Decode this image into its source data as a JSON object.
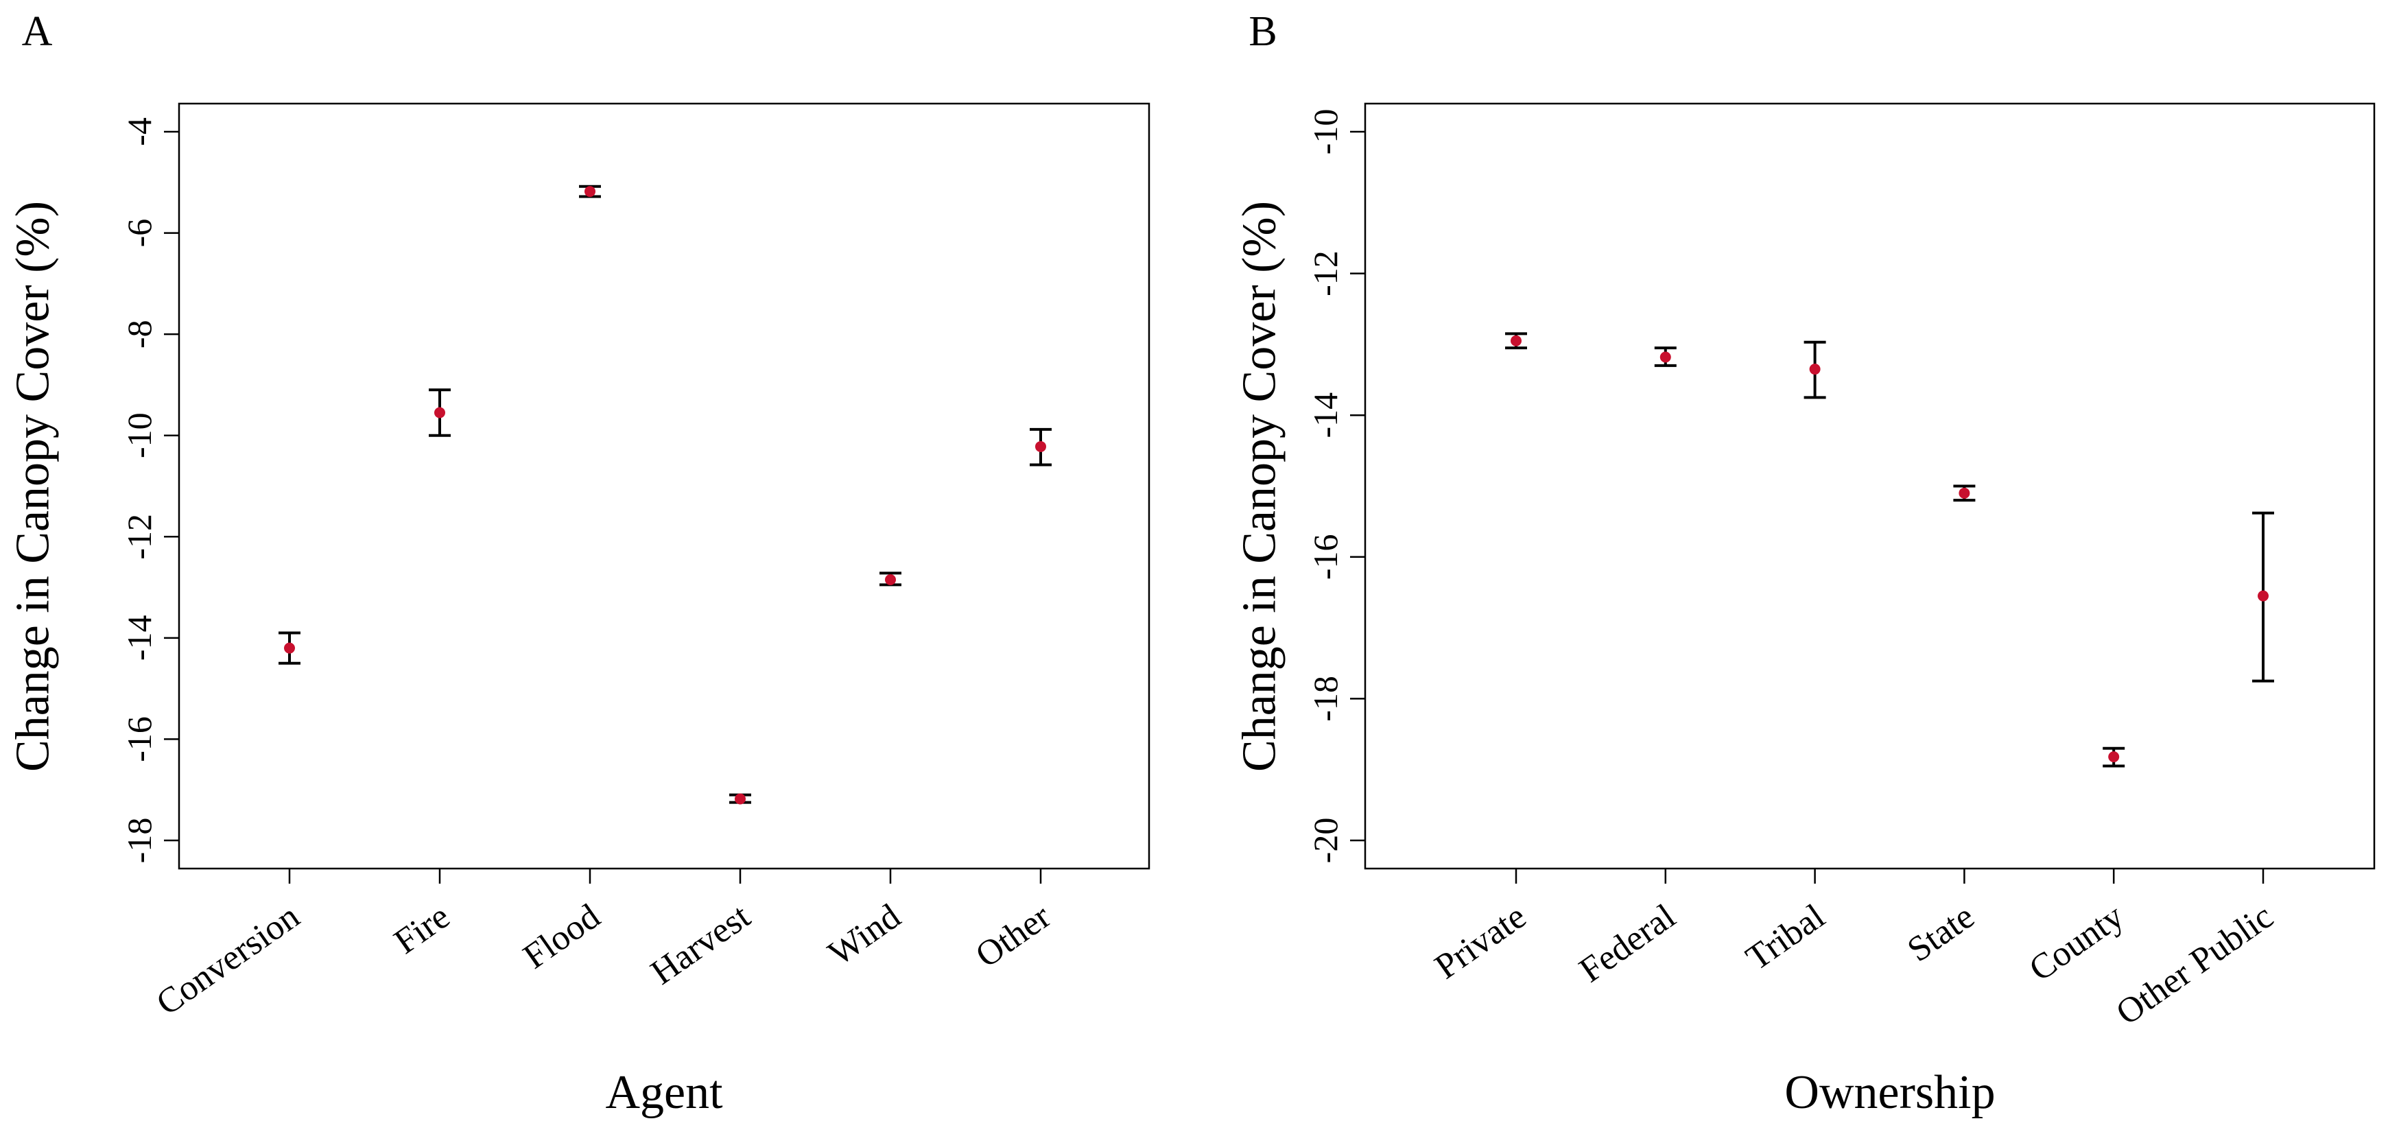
{
  "figure": {
    "colors": {
      "point": "#c8102e",
      "line": "#000000",
      "background": "#ffffff"
    }
  },
  "chart_data": [
    {
      "type": "scatter",
      "panel_label": "A",
      "title": "",
      "xlabel": "Agent",
      "ylabel": "Change in Canopy Cover (%)",
      "categories": [
        "Conversion",
        "Fire",
        "Flood",
        "Harvest",
        "Wind",
        "Other"
      ],
      "values": [
        -14.2,
        -9.55,
        -5.18,
        -17.18,
        -12.85,
        -10.22
      ],
      "lower": [
        -14.5,
        -10.0,
        -5.28,
        -17.25,
        -12.95,
        -10.58
      ],
      "upper": [
        -13.9,
        -9.1,
        -5.08,
        -17.1,
        -12.72,
        -9.88
      ],
      "yticks": [
        -4,
        -6,
        -8,
        -10,
        -12,
        -14,
        -16,
        -18
      ],
      "ytick_labels": [
        "-4",
        "-6",
        "-8",
        "-10",
        "-12",
        "-14",
        "-16",
        "-18"
      ],
      "ylim": [
        -18.55,
        -3.45
      ],
      "grid": false,
      "error_bars": true
    },
    {
      "type": "scatter",
      "panel_label": "B",
      "title": "",
      "xlabel": "Ownership",
      "ylabel": "Change in Canopy Cover (%)",
      "categories": [
        "Private",
        "Federal",
        "Tribal",
        "State",
        "County",
        "Other Public"
      ],
      "values": [
        -12.95,
        -13.18,
        -13.35,
        -15.1,
        -18.82,
        -16.55
      ],
      "lower": [
        -13.05,
        -13.3,
        -13.75,
        -15.2,
        -18.95,
        -17.75
      ],
      "upper": [
        -12.85,
        -13.05,
        -12.97,
        -15.0,
        -18.7,
        -15.38
      ],
      "yticks": [
        -10,
        -12,
        -14,
        -16,
        -18,
        -20
      ],
      "ytick_labels": [
        "-10",
        "-12",
        "-14",
        "-16",
        "-18",
        "-20"
      ],
      "ylim": [
        -20.37,
        -9.63
      ],
      "grid": false,
      "error_bars": true
    }
  ]
}
